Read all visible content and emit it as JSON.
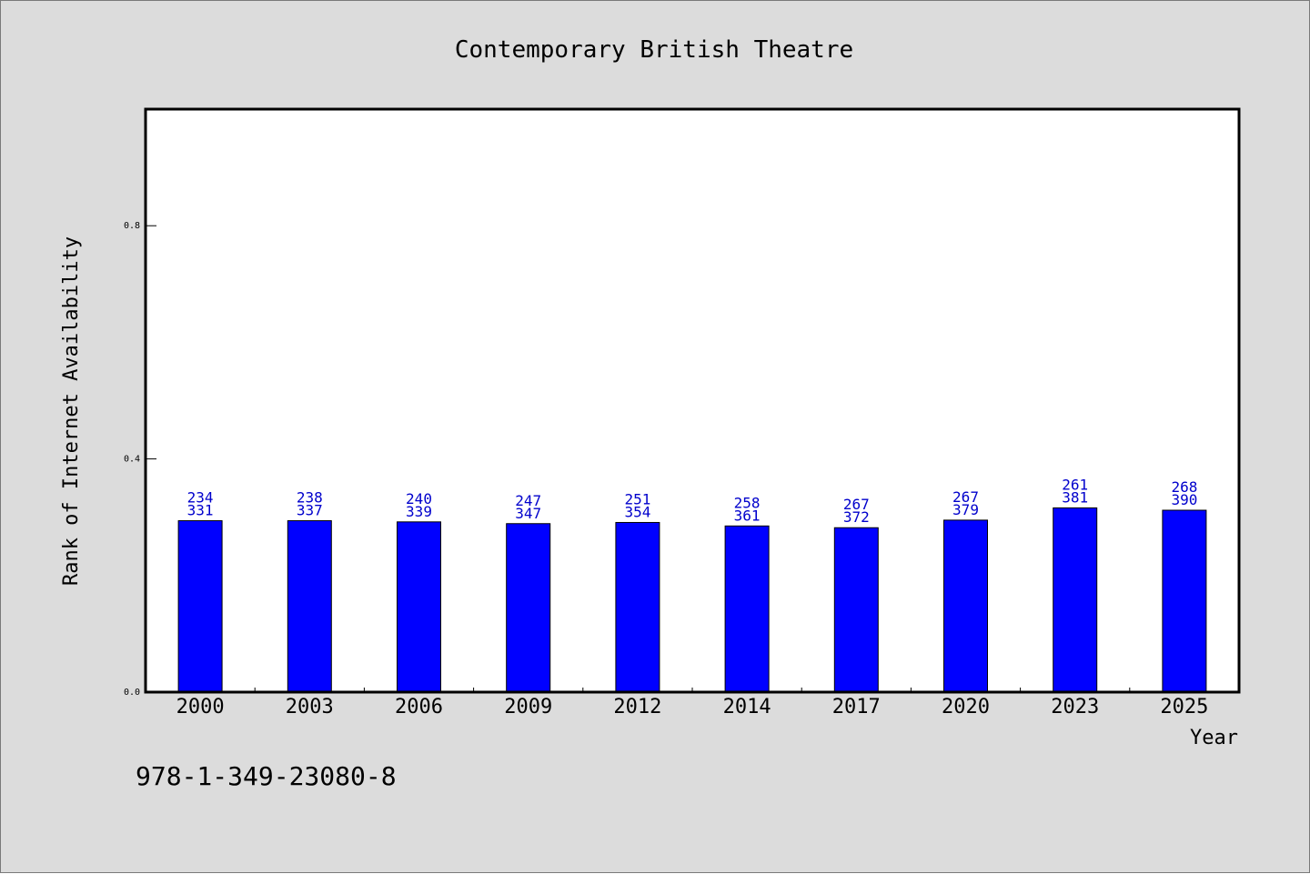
{
  "chart_data": {
    "type": "bar",
    "title": "Contemporary British Theatre",
    "xlabel": "Year",
    "ylabel": "Rank of Internet Availability",
    "ylim": [
      0,
      1.0
    ],
    "yticks": [
      0.0,
      0.4,
      0.8
    ],
    "ytick_labels": [
      "0.0",
      "0.4",
      "0.8"
    ],
    "categories": [
      "2000",
      "2003",
      "2006",
      "2009",
      "2012",
      "2014",
      "2017",
      "2020",
      "2023",
      "2025"
    ],
    "values": [
      0.294,
      0.294,
      0.292,
      0.289,
      0.291,
      0.285,
      0.282,
      0.295,
      0.316,
      0.312
    ],
    "bar_labels": [
      [
        "234",
        "331"
      ],
      [
        "238",
        "337"
      ],
      [
        "240",
        "339"
      ],
      [
        "247",
        "347"
      ],
      [
        "251",
        "354"
      ],
      [
        "258",
        "361"
      ],
      [
        "267",
        "372"
      ],
      [
        "267",
        "379"
      ],
      [
        "261",
        "381"
      ],
      [
        "268",
        "390"
      ]
    ],
    "grid": false,
    "colors": {
      "bar": "#0000ff",
      "bar_edge": "#000000",
      "data_label": "#0000cc",
      "figure_bg": "#dcdcdc",
      "plot_bg": "#ffffff"
    }
  },
  "footnote": "978-1-349-23080-8"
}
